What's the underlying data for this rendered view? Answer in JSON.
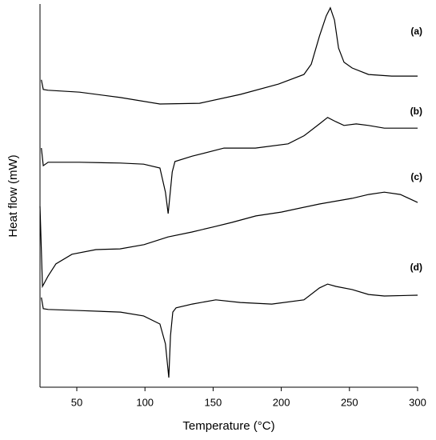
{
  "chart_data": {
    "type": "line",
    "x_label": "Temperature (°C)",
    "y_label": "Heat flow (mW)",
    "xlim": [
      23,
      300
    ],
    "xticks": [
      50,
      100,
      150,
      200,
      250,
      300
    ],
    "ylim": [
      0,
      100
    ],
    "series": [
      {
        "name": "(a)",
        "color": "#000000",
        "x": [
          24,
          25.4,
          29,
          52,
          82,
          111,
          140,
          170,
          198,
          216.6,
          222,
          228,
          233,
          236,
          239,
          242,
          246,
          252,
          264,
          281,
          300
        ],
        "values": [
          80.2,
          77.7,
          77.5,
          77.0,
          75.6,
          73.9,
          74.1,
          76.4,
          79.1,
          81.6,
          84.3,
          91.6,
          96.9,
          99.0,
          95.8,
          88.5,
          84.8,
          83.3,
          81.6,
          81.2,
          81.2
        ]
      },
      {
        "name": "(b)",
        "color": "#000000",
        "x": [
          24,
          25.4,
          29,
          52,
          82,
          99,
          111,
          115,
          117,
          120,
          122,
          134.6,
          158,
          181,
          205,
          216.6,
          228,
          234,
          240,
          246,
          255,
          264,
          275.6,
          300
        ],
        "values": [
          62.4,
          57.8,
          58.7,
          58.7,
          58.5,
          58.2,
          57.2,
          50.9,
          45.3,
          56.2,
          58.9,
          60.3,
          62.4,
          62.4,
          63.5,
          65.6,
          68.7,
          70.4,
          69.3,
          68.3,
          68.7,
          68.3,
          67.6,
          67.6
        ]
      },
      {
        "name": "(c)",
        "color": "#000000",
        "x": [
          23,
          24.8,
          28.9,
          34.7,
          46.5,
          64,
          81.7,
          99.3,
          116.9,
          134.5,
          149.8,
          163.8,
          181.4,
          200,
          228,
          252,
          264,
          275.6,
          287.4,
          300
        ],
        "values": [
          47.2,
          26.3,
          29.0,
          32.2,
          34.7,
          35.9,
          36.1,
          37.2,
          39.2,
          40.5,
          41.8,
          43.0,
          44.7,
          45.7,
          47.8,
          49.3,
          50.3,
          50.9,
          50.3,
          48.2
        ]
      },
      {
        "name": "(d)",
        "color": "#000000",
        "x": [
          24,
          25.4,
          29,
          52,
          82,
          99,
          111,
          115,
          117.5,
          118.7,
          120.4,
          122.8,
          134.6,
          152,
          170,
          193,
          216.6,
          228,
          234,
          240,
          252,
          264,
          275.6,
          300
        ],
        "values": [
          23.4,
          20.5,
          20.3,
          20.0,
          19.6,
          18.6,
          16.5,
          11.3,
          2.5,
          13.4,
          19.6,
          20.7,
          21.7,
          22.8,
          22.1,
          21.7,
          22.8,
          25.9,
          26.9,
          26.3,
          25.5,
          24.2,
          23.8,
          24.0
        ]
      }
    ]
  }
}
